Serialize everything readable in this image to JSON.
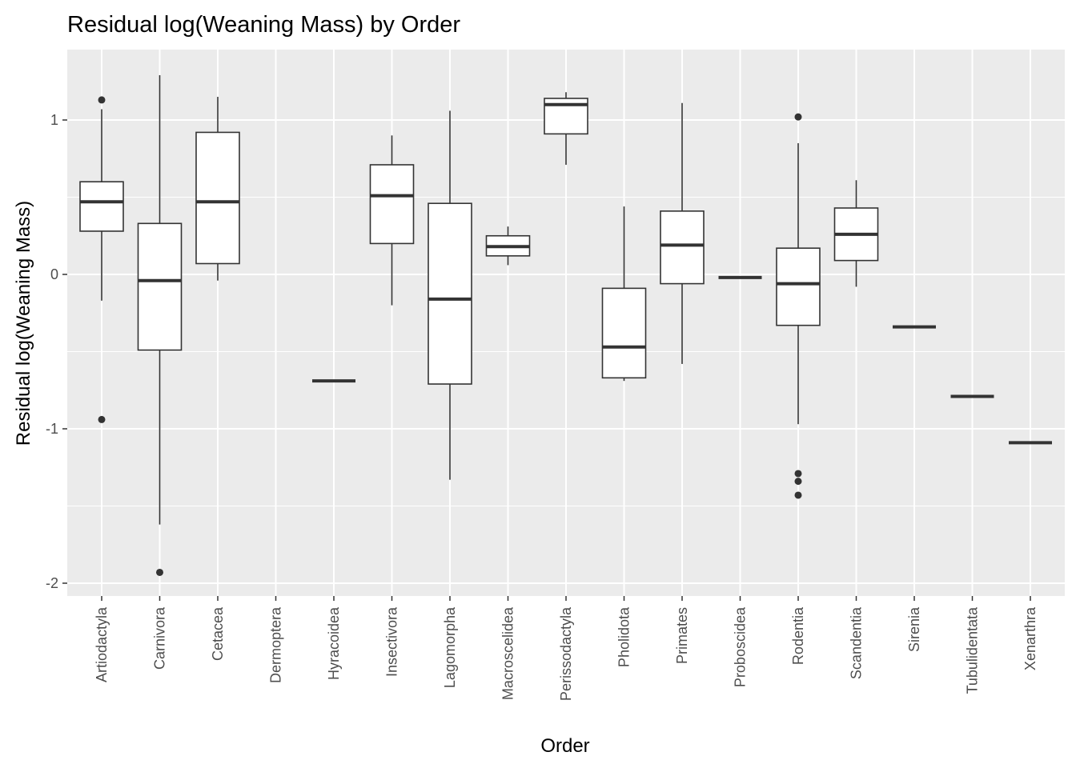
{
  "chart_data": {
    "type": "boxplot",
    "title": "Residual log(Weaning Mass) by Order",
    "xlabel": "Order",
    "ylabel": "Residual log(Weaning Mass)",
    "ylim": [
      -2.1,
      1.42
    ],
    "yticks": [
      -2,
      -1,
      0,
      1
    ],
    "ytick_labels": [
      "-2",
      "-1",
      "0",
      "1"
    ],
    "grid": true,
    "legend": "none",
    "colors": {
      "panel": "#ebebeb",
      "grid_major": "#ffffff",
      "box_fill": "#ffffff",
      "box_line": "#333333",
      "tick_text": "#4d4d4d"
    },
    "categories": [
      "Artiodactyla",
      "Carnivora",
      "Cetacea",
      "Dermoptera",
      "Hyracoidea",
      "Insectivora",
      "Lagomorpha",
      "Macroscelidea",
      "Perissodactyla",
      "Pholidota",
      "Primates",
      "Proboscidea",
      "Rodentia",
      "Scandentia",
      "Sirenia",
      "Tubulidentata",
      "Xenarthra"
    ],
    "boxes": [
      {
        "category": "Artiodactyla",
        "whisker_low": -0.17,
        "q1": 0.28,
        "median": 0.47,
        "q3": 0.6,
        "whisker_high": 1.07,
        "outliers": [
          1.13,
          -0.94
        ]
      },
      {
        "category": "Carnivora",
        "whisker_low": -1.62,
        "q1": -0.49,
        "median": -0.04,
        "q3": 0.33,
        "whisker_high": 1.29,
        "outliers": [
          -1.93
        ]
      },
      {
        "category": "Cetacea",
        "whisker_low": -0.04,
        "q1": 0.07,
        "median": 0.47,
        "q3": 0.92,
        "whisker_high": 1.15,
        "outliers": []
      },
      {
        "category": "Dermoptera",
        "whisker_low": null,
        "q1": null,
        "median": null,
        "q3": null,
        "whisker_high": null,
        "outliers": []
      },
      {
        "category": "Hyracoidea",
        "whisker_low": -0.69,
        "q1": -0.69,
        "median": -0.69,
        "q3": -0.69,
        "whisker_high": -0.69,
        "outliers": []
      },
      {
        "category": "Insectivora",
        "whisker_low": -0.2,
        "q1": 0.2,
        "median": 0.51,
        "q3": 0.71,
        "whisker_high": 0.9,
        "outliers": []
      },
      {
        "category": "Lagomorpha",
        "whisker_low": -1.33,
        "q1": -0.71,
        "median": -0.16,
        "q3": 0.46,
        "whisker_high": 1.06,
        "outliers": []
      },
      {
        "category": "Macroscelidea",
        "whisker_low": 0.06,
        "q1": 0.12,
        "median": 0.18,
        "q3": 0.25,
        "whisker_high": 0.31,
        "outliers": []
      },
      {
        "category": "Perissodactyla",
        "whisker_low": 0.71,
        "q1": 0.91,
        "median": 1.1,
        "q3": 1.14,
        "whisker_high": 1.18,
        "outliers": []
      },
      {
        "category": "Pholidota",
        "whisker_low": -0.69,
        "q1": -0.67,
        "median": -0.47,
        "q3": -0.09,
        "whisker_high": 0.44,
        "outliers": []
      },
      {
        "category": "Primates",
        "whisker_low": -0.58,
        "q1": -0.06,
        "median": 0.19,
        "q3": 0.41,
        "whisker_high": 1.11,
        "outliers": []
      },
      {
        "category": "Proboscidea",
        "whisker_low": -0.02,
        "q1": -0.02,
        "median": -0.02,
        "q3": -0.02,
        "whisker_high": -0.02,
        "outliers": []
      },
      {
        "category": "Rodentia",
        "whisker_low": -0.97,
        "q1": -0.33,
        "median": -0.06,
        "q3": 0.17,
        "whisker_high": 0.85,
        "outliers": [
          1.02,
          -1.29,
          -1.34,
          -1.43
        ]
      },
      {
        "category": "Scandentia",
        "whisker_low": -0.08,
        "q1": 0.09,
        "median": 0.26,
        "q3": 0.43,
        "whisker_high": 0.61,
        "outliers": []
      },
      {
        "category": "Sirenia",
        "whisker_low": -0.34,
        "q1": -0.34,
        "median": -0.34,
        "q3": -0.34,
        "whisker_high": -0.34,
        "outliers": []
      },
      {
        "category": "Tubulidentata",
        "whisker_low": -0.79,
        "q1": -0.79,
        "median": -0.79,
        "q3": -0.79,
        "whisker_high": -0.79,
        "outliers": []
      },
      {
        "category": "Xenarthra",
        "whisker_low": -1.09,
        "q1": -1.09,
        "median": -1.09,
        "q3": -1.09,
        "whisker_high": -1.09,
        "outliers": []
      }
    ]
  }
}
